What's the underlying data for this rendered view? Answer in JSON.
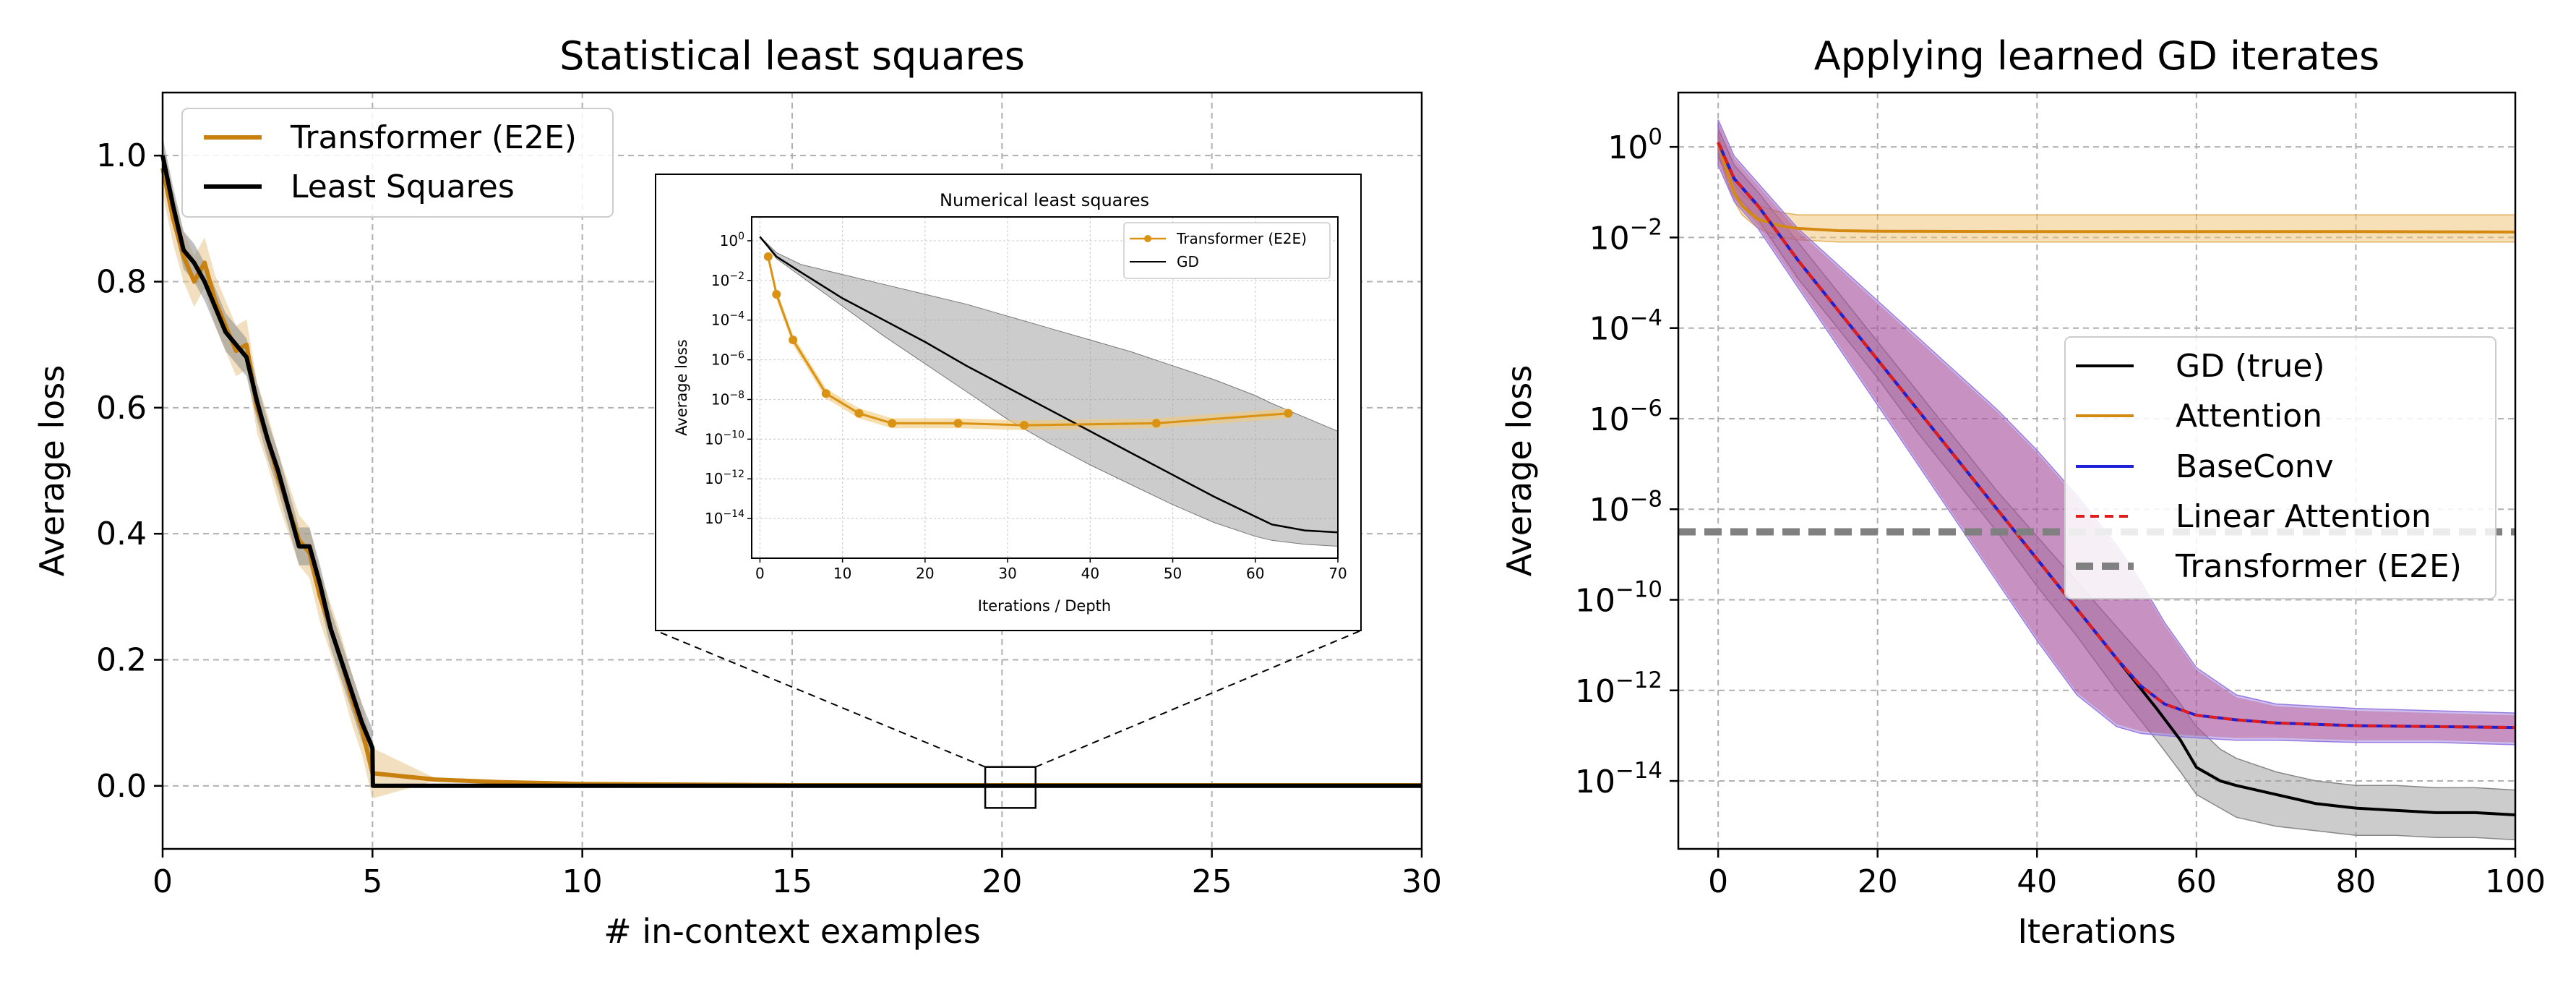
{
  "chart_data": [
    {
      "type": "line",
      "title": "Statistical least squares",
      "xlabel": "# in-context examples",
      "ylabel": "Average loss",
      "xlim": [
        0,
        30
      ],
      "ylim": [
        -0.1,
        1.1
      ],
      "xticks": [
        0,
        5,
        10,
        15,
        20,
        25,
        30
      ],
      "yticks": [
        0.0,
        0.2,
        0.4,
        0.6,
        0.8,
        1.0
      ],
      "xtick_labels": [
        "0",
        "5",
        "10",
        "15",
        "20",
        "25",
        "30"
      ],
      "ytick_labels": [
        "0.0",
        "0.2",
        "0.4",
        "0.6",
        "0.8",
        "1.0"
      ],
      "grid": true,
      "legend_position": "top-left",
      "series": [
        {
          "name": "Transformer (E2E)",
          "color": "#c8800e",
          "x": [
            0,
            0.25,
            0.5,
            0.75,
            1.0,
            1.25,
            1.5,
            1.75,
            2.0,
            2.25,
            2.5,
            2.75,
            3.0,
            3.25,
            3.5,
            3.75,
            4.0,
            4.25,
            4.5,
            4.75,
            5.0,
            6.5,
            8,
            10,
            15,
            20,
            25,
            30
          ],
          "y": [
            0.98,
            0.9,
            0.84,
            0.8,
            0.83,
            0.77,
            0.73,
            0.69,
            0.7,
            0.6,
            0.55,
            0.49,
            0.44,
            0.39,
            0.37,
            0.3,
            0.25,
            0.2,
            0.14,
            0.09,
            0.02,
            0.01,
            0.006,
            0.003,
            0.001,
            0.001,
            0.001,
            0.001
          ],
          "band": 0.04
        },
        {
          "name": "Least Squares",
          "color": "#000000",
          "x": [
            0,
            0.25,
            0.5,
            0.75,
            1.0,
            1.25,
            1.5,
            1.75,
            2.0,
            2.25,
            2.5,
            2.75,
            3.0,
            3.25,
            3.5,
            3.75,
            4.0,
            4.25,
            4.5,
            4.75,
            5.0,
            5.01,
            10,
            20,
            30
          ],
          "y": [
            1.0,
            0.92,
            0.85,
            0.83,
            0.8,
            0.76,
            0.72,
            0.7,
            0.68,
            0.61,
            0.55,
            0.5,
            0.44,
            0.38,
            0.38,
            0.32,
            0.25,
            0.2,
            0.15,
            0.1,
            0.06,
            0.0,
            0.0,
            0.0,
            0.0
          ],
          "band": 0.03
        }
      ],
      "zoom_box_x": [
        19.6,
        20.8
      ],
      "zoom_box_y": [
        -0.035,
        0.03
      ]
    },
    {
      "type": "line",
      "title": "Numerical least squares",
      "xlabel": "Iterations / Depth",
      "ylabel": "Average loss",
      "yscale": "log",
      "xlim": [
        -1,
        70
      ],
      "ylim_log10": [
        -16,
        1.2
      ],
      "xticks": [
        0,
        10,
        20,
        30,
        40,
        50,
        60,
        70
      ],
      "xtick_labels": [
        "0",
        "10",
        "20",
        "30",
        "40",
        "50",
        "60",
        "70"
      ],
      "yticks_log10": [
        0,
        -2,
        -4,
        -6,
        -8,
        -10,
        -12,
        -14
      ],
      "grid": true,
      "legend_position": "top-right",
      "series": [
        {
          "name": "Transformer (E2E)",
          "color": "#d99212",
          "markers": true,
          "x": [
            1,
            2,
            4,
            8,
            12,
            16,
            24,
            32,
            48,
            64
          ],
          "log10_y": [
            -0.8,
            -2.7,
            -5.0,
            -7.7,
            -8.7,
            -9.2,
            -9.2,
            -9.3,
            -9.2,
            -8.7
          ]
        },
        {
          "name": "GD",
          "color": "#000000",
          "x": [
            0,
            2,
            5,
            10,
            15,
            20,
            25,
            30,
            35,
            40,
            45,
            50,
            55,
            60,
            62,
            66,
            70
          ],
          "log10_y": [
            0.2,
            -0.8,
            -1.6,
            -2.9,
            -4.0,
            -5.1,
            -6.3,
            -7.4,
            -8.5,
            -9.6,
            -10.7,
            -11.8,
            -12.9,
            -13.9,
            -14.3,
            -14.6,
            -14.7
          ],
          "band_upper_log10": [
            0.2,
            -0.6,
            -1.2,
            -1.7,
            -2.2,
            -2.7,
            -3.2,
            -3.8,
            -4.4,
            -5.0,
            -5.6,
            -6.3,
            -7.0,
            -7.8,
            -8.2,
            -8.9,
            -9.6
          ],
          "band_lower_log10": [
            0.2,
            -0.9,
            -1.8,
            -3.3,
            -4.8,
            -6.2,
            -7.6,
            -9.0,
            -10.2,
            -11.3,
            -12.3,
            -13.3,
            -14.2,
            -14.9,
            -15.1,
            -15.3,
            -15.4
          ]
        }
      ]
    },
    {
      "type": "line",
      "title": "Applying learned GD iterates",
      "xlabel": "Iterations",
      "ylabel": "Average loss",
      "yscale": "log",
      "xlim": [
        -5,
        100
      ],
      "ylim_log10": [
        -15.5,
        1.2
      ],
      "xticks": [
        0,
        20,
        40,
        60,
        80,
        100
      ],
      "xtick_labels": [
        "0",
        "20",
        "40",
        "60",
        "80",
        "100"
      ],
      "yticks_log10": [
        0,
        -2,
        -4,
        -6,
        -8,
        -10,
        -12,
        -14
      ],
      "grid": true,
      "legend_position": "center-right",
      "series": [
        {
          "name": "GD (true)",
          "color": "#000000",
          "x": [
            0,
            2,
            5,
            10,
            15,
            20,
            25,
            30,
            35,
            40,
            45,
            50,
            55,
            58,
            60,
            63,
            65,
            70,
            75,
            80,
            85,
            90,
            95,
            100
          ],
          "log10_y": [
            0.1,
            -0.7,
            -1.3,
            -2.5,
            -3.6,
            -4.7,
            -5.8,
            -6.9,
            -8.0,
            -9.1,
            -10.2,
            -11.3,
            -12.4,
            -13.1,
            -13.7,
            -14.0,
            -14.1,
            -14.3,
            -14.5,
            -14.6,
            -14.65,
            -14.7,
            -14.7,
            -14.75
          ],
          "band_upper_log10": [
            0.4,
            -0.4,
            -1.0,
            -2.1,
            -3.2,
            -4.3,
            -5.4,
            -6.5,
            -7.6,
            -8.6,
            -9.6,
            -10.6,
            -11.6,
            -12.3,
            -12.8,
            -13.3,
            -13.5,
            -13.8,
            -14.0,
            -14.1,
            -14.1,
            -14.15,
            -14.15,
            -14.2
          ],
          "band_lower_log10": [
            -0.2,
            -1.0,
            -1.6,
            -2.9,
            -4.0,
            -5.1,
            -6.3,
            -7.4,
            -8.5,
            -9.7,
            -10.8,
            -12.0,
            -13.1,
            -13.8,
            -14.3,
            -14.6,
            -14.8,
            -15.0,
            -15.1,
            -15.2,
            -15.2,
            -15.25,
            -15.25,
            -15.3
          ]
        },
        {
          "name": "Attention",
          "color": "#d48a11",
          "x": [
            0,
            1,
            2,
            3,
            5,
            8,
            10,
            15,
            20,
            40,
            60,
            80,
            100
          ],
          "log10_y": [
            0.1,
            -0.5,
            -1.0,
            -1.3,
            -1.6,
            -1.75,
            -1.8,
            -1.85,
            -1.86,
            -1.87,
            -1.87,
            -1.87,
            -1.88
          ],
          "band_upper_log10": [
            0.3,
            -0.3,
            -0.8,
            -1.05,
            -1.3,
            -1.45,
            -1.5,
            -1.5,
            -1.5,
            -1.5,
            -1.5,
            -1.5,
            -1.5
          ],
          "band_lower_log10": [
            -0.1,
            -0.7,
            -1.2,
            -1.5,
            -1.8,
            -2.0,
            -2.05,
            -2.1,
            -2.1,
            -2.1,
            -2.1,
            -2.1,
            -2.1
          ]
        },
        {
          "name": "BaseConv",
          "color": "#1f1fd6",
          "x": [
            0,
            2,
            5,
            10,
            15,
            20,
            25,
            30,
            35,
            40,
            45,
            50,
            53,
            56,
            60,
            65,
            70,
            80,
            90,
            100
          ],
          "log10_y": [
            0.1,
            -0.7,
            -1.3,
            -2.5,
            -3.6,
            -4.7,
            -5.8,
            -6.9,
            -8.0,
            -9.1,
            -10.2,
            -11.3,
            -11.9,
            -12.3,
            -12.55,
            -12.65,
            -12.72,
            -12.78,
            -12.8,
            -12.82
          ],
          "band_upper_log10": [
            0.6,
            -0.2,
            -0.8,
            -1.8,
            -2.6,
            -3.4,
            -4.2,
            -5.0,
            -5.8,
            -6.7,
            -7.7,
            -8.8,
            -9.6,
            -10.5,
            -11.5,
            -12.1,
            -12.3,
            -12.4,
            -12.45,
            -12.5
          ],
          "band_lower_log10": [
            -0.4,
            -1.2,
            -1.8,
            -3.1,
            -4.4,
            -5.7,
            -7.0,
            -8.3,
            -9.6,
            -10.9,
            -12.1,
            -12.8,
            -12.95,
            -13.0,
            -13.05,
            -13.1,
            -13.1,
            -13.15,
            -13.15,
            -13.2
          ]
        },
        {
          "name": "Linear Attention",
          "color": "#e01c1c",
          "dashed": true,
          "x": [
            0,
            2,
            5,
            10,
            15,
            20,
            25,
            30,
            35,
            40,
            45,
            50,
            53,
            56,
            60,
            65,
            70,
            80,
            90,
            100
          ],
          "log10_y": [
            0.1,
            -0.7,
            -1.3,
            -2.5,
            -3.6,
            -4.7,
            -5.8,
            -6.9,
            -8.0,
            -9.1,
            -10.2,
            -11.3,
            -11.9,
            -12.3,
            -12.55,
            -12.65,
            -12.72,
            -12.78,
            -12.8,
            -12.82
          ]
        },
        {
          "name": "Transformer (E2E)",
          "color": "#808080",
          "dashed": true,
          "hline_log10": -8.5
        }
      ]
    }
  ]
}
